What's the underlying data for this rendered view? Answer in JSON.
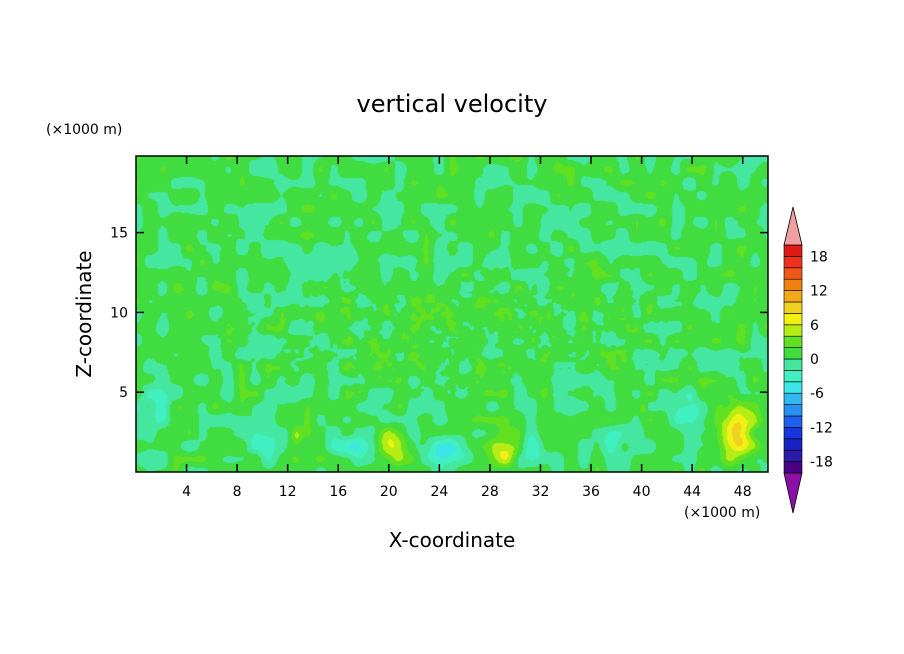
{
  "chart_data": {
    "type": "heatmap",
    "title": "vertical velocity",
    "xlabel": "X-coordinate",
    "ylabel": "Z-coordinate",
    "x_unit": "(×1000 m)",
    "y_unit": "(×1000 m)",
    "xlim": [
      0,
      50
    ],
    "ylim": [
      0,
      19.8
    ],
    "x_ticks": [
      4,
      8,
      12,
      16,
      20,
      24,
      28,
      32,
      36,
      40,
      44,
      48
    ],
    "y_ticks": [
      5,
      10,
      15
    ],
    "colorbar": {
      "levels": [
        -20,
        -18,
        -16,
        -14,
        -12,
        -10,
        -8,
        -6,
        -4,
        -2,
        0,
        2,
        4,
        6,
        8,
        10,
        12,
        14,
        16,
        18,
        20
      ],
      "labels": [
        18,
        12,
        6,
        0,
        -6,
        -12,
        -18
      ],
      "colors": [
        "#4b0082",
        "#2a1ca8",
        "#1a22c4",
        "#1636e0",
        "#1e60f0",
        "#2890f0",
        "#30b8f0",
        "#3ce6e6",
        "#40f0c0",
        "#44e6a0",
        "#40dc40",
        "#60e020",
        "#b4ec14",
        "#f0f014",
        "#f0d020",
        "#f0a818",
        "#f08010",
        "#f05818",
        "#f03020",
        "#e01818"
      ],
      "under_color": "#8b10a8",
      "over_color": "#f0a0a0"
    },
    "background_value": 0.5,
    "features": [
      {
        "x": 47.5,
        "z": 2.6,
        "amp": 9.5,
        "sx": 1.3,
        "sz": 1.6
      },
      {
        "x": 20.2,
        "z": 1.7,
        "amp": 6.5,
        "sx": 1.2,
        "sz": 1.0
      },
      {
        "x": 29.2,
        "z": 1.3,
        "amp": 6.0,
        "sx": 1.0,
        "sz": 0.9
      },
      {
        "x": 12.7,
        "z": 2.3,
        "amp": 4.0,
        "sx": 0.4,
        "sz": 0.6
      },
      {
        "x": 40.1,
        "z": 4.0,
        "amp": 3.0,
        "sx": 0.3,
        "sz": 0.4
      },
      {
        "x": 24.5,
        "z": 1.4,
        "amp": -5.5,
        "sx": 1.8,
        "sz": 0.9
      },
      {
        "x": 17.0,
        "z": 1.5,
        "amp": -3.5,
        "sx": 1.4,
        "sz": 0.9
      },
      {
        "x": 44.0,
        "z": 3.5,
        "amp": -4.5,
        "sx": 1.3,
        "sz": 1.2
      },
      {
        "x": 10.0,
        "z": 1.8,
        "amp": -2.8,
        "sx": 1.4,
        "sz": 0.9
      },
      {
        "x": 31.5,
        "z": 1.5,
        "amp": -3.0,
        "sx": 1.0,
        "sz": 0.8
      },
      {
        "x": 1.5,
        "z": 4.0,
        "amp": -2.8,
        "sx": 1.2,
        "sz": 1.5
      },
      {
        "x": 38.0,
        "z": 2.0,
        "amp": -2.2,
        "sx": 1.2,
        "sz": 1.0
      }
    ]
  }
}
